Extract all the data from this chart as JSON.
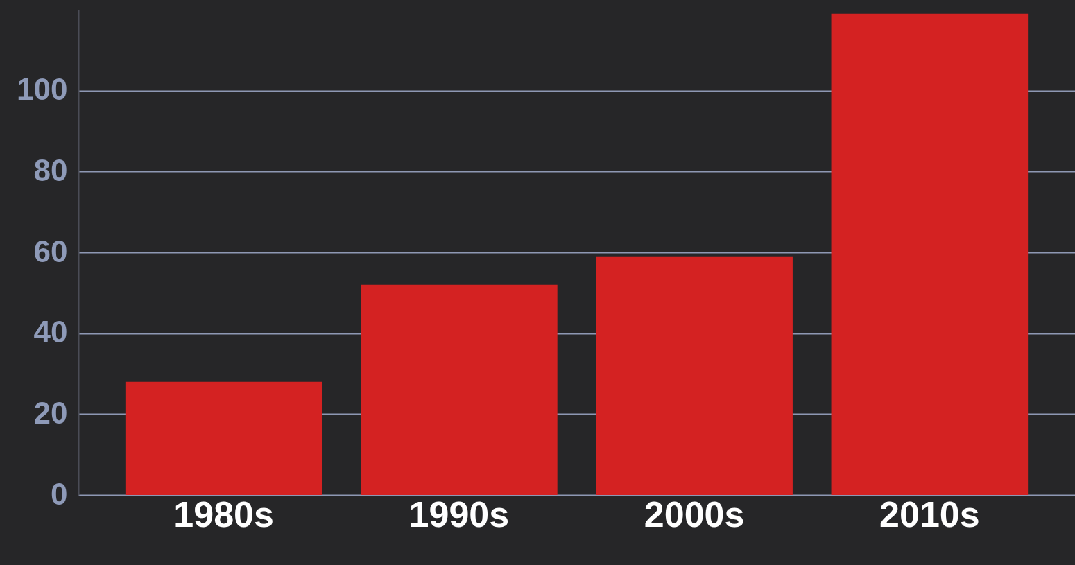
{
  "chart_data": {
    "type": "bar",
    "categories": [
      "1980s",
      "1990s",
      "2000s",
      "2010s"
    ],
    "values": [
      28,
      52,
      59,
      119
    ],
    "color": "#d42222",
    "ylim": [
      0,
      120
    ],
    "yticks": [
      0,
      20,
      40,
      60,
      80,
      100
    ],
    "grid": "y"
  }
}
